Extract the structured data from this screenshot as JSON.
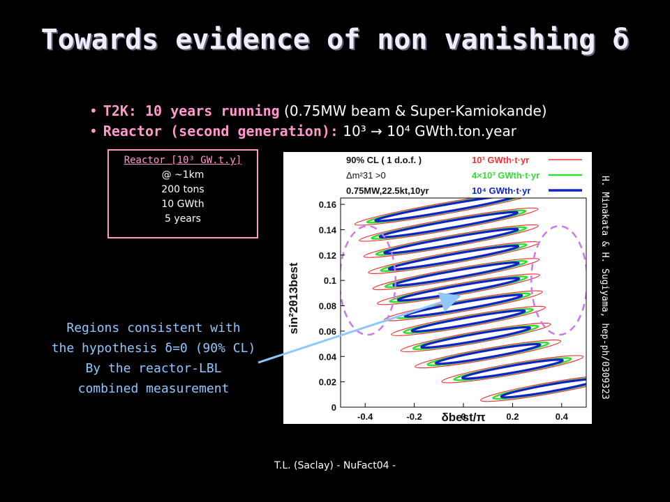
{
  "slide": {
    "title": "Towards evidence of non vanishing δ",
    "footer": "T.L. (Saclay) - NuFact04 -",
    "credit": "H. Minakata & H. Sugiyama, hep-ph/0309323"
  },
  "bullets": [
    {
      "lead": "T2K: 10 years running",
      "rest": " (0.75MW beam & Super-Kamiokande)"
    },
    {
      "lead": "Reactor (second generation):",
      "rest": " 10³ → 10⁴ GWth.ton.year"
    }
  ],
  "reactor_box": {
    "head": "Reactor [10³ GW.t.y]",
    "lines": [
      "@ ~1km",
      "200 tons",
      "10 GWth",
      "5 years"
    ]
  },
  "regions_note": {
    "lines": [
      "Regions consistent with",
      "the hypothesis δ=0 (90% CL)",
      "By the reactor-LBL",
      "combined measurement"
    ]
  },
  "colors": {
    "accent": "#ff99cc",
    "note": "#8fc8ff",
    "red": "#ee3333",
    "green": "#33dd33",
    "blue": "#1122cc",
    "dash": "#cc77ee"
  },
  "chart_data": {
    "type": "contour",
    "xlabel": "δbest/π",
    "ylabel": "sin²2θ13best",
    "xlim": [
      -0.5,
      0.5
    ],
    "ylim": [
      0,
      0.165
    ],
    "xticks": [
      "-0.4",
      "-0.2",
      "0",
      "0.2",
      "0.4"
    ],
    "xtick_values": [
      -0.4,
      -0.2,
      0,
      0.2,
      0.4
    ],
    "yticks": [
      "0",
      "0.02",
      "0.04",
      "0.06",
      "0.08",
      "0.1",
      "0.12",
      "0.14",
      "0.16"
    ],
    "ytick_values": [
      0,
      0.02,
      0.04,
      0.06,
      0.08,
      0.1,
      0.12,
      0.14,
      0.16
    ],
    "info": [
      "90% CL ( 1 d.o.f. )",
      "Δm²31 >0",
      "0.75MW,22.5kt,10yr"
    ],
    "legend": [
      {
        "label": "10³ GWth·t·yr",
        "color": "#ee3333"
      },
      {
        "label": "4×10³ GWth·t·yr",
        "color": "#33dd33"
      },
      {
        "label": "10⁴ GWth·t·yr",
        "color": "#1122cc"
      }
    ],
    "contour_centers": [
      {
        "delta": 0.35,
        "s": 0.015
      },
      {
        "delta": 0.2,
        "s": 0.03
      },
      {
        "delta": 0.1,
        "s": 0.042
      },
      {
        "delta": 0.05,
        "s": 0.055
      },
      {
        "delta": 0.02,
        "s": 0.068
      },
      {
        "delta": 0.0,
        "s": 0.08
      },
      {
        "delta": -0.02,
        "s": 0.093
      },
      {
        "delta": -0.03,
        "s": 0.105
      },
      {
        "delta": -0.04,
        "s": 0.118
      },
      {
        "delta": -0.05,
        "s": 0.131
      },
      {
        "delta": -0.06,
        "s": 0.144
      },
      {
        "delta": -0.07,
        "s": 0.157
      }
    ]
  }
}
